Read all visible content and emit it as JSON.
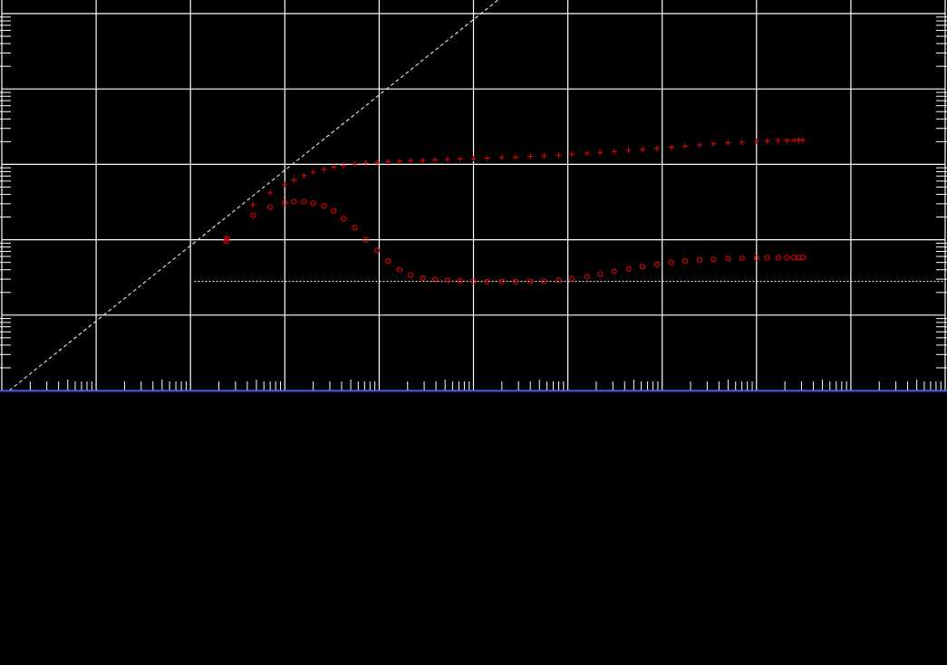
{
  "chart_data": {
    "type": "scatter",
    "title": "",
    "xlabel": "",
    "ylabel": "",
    "x_scale": "log",
    "y_scale": "log",
    "xlim": [
      0.01,
      100000000
    ],
    "ylim": [
      0.01,
      1000
    ],
    "grid": true,
    "legend": "none",
    "series": [
      {
        "marker": "plus",
        "color": "#ff0000",
        "x": [
          2.4,
          4.6,
          7.0,
          10.0,
          12.5,
          16,
          20,
          26,
          33,
          42,
          55,
          72,
          95,
          125,
          165,
          215,
          290,
          390,
          530,
          720,
          1000,
          1400,
          2000,
          2800,
          4000,
          5600,
          8000,
          11000,
          16000,
          22000,
          31000,
          44000,
          62000,
          88000,
          125000,
          175000,
          250000,
          350000,
          500000,
          700000,
          1000000,
          1300000,
          1700000,
          2100000,
          2500000,
          2800000,
          3100000
        ],
        "y": [
          1.0,
          2.9,
          4.2,
          5.4,
          6.2,
          7.1,
          7.9,
          8.6,
          9.2,
          9.7,
          10.1,
          10.4,
          10.6,
          10.8,
          11.0,
          11.2,
          11.3,
          11.5,
          11.6,
          11.8,
          11.9,
          12.1,
          12.3,
          12.5,
          12.8,
          13.0,
          13.3,
          13.6,
          14.0,
          14.4,
          14.8,
          15.3,
          15.8,
          16.3,
          16.9,
          17.5,
          18.1,
          18.7,
          19.3,
          19.8,
          20.2,
          20.5,
          20.7,
          20.8,
          20.9,
          21.0,
          21.0
        ]
      },
      {
        "marker": "circle",
        "color": "#ff0000",
        "x": [
          2.4,
          2.45,
          4.6,
          7.0,
          10.0,
          12.5,
          16,
          20,
          26,
          33,
          42,
          55,
          72,
          95,
          125,
          165,
          215,
          290,
          390,
          530,
          720,
          1000,
          1400,
          2000,
          2800,
          4000,
          5600,
          8000,
          11000,
          16000,
          22000,
          31000,
          44000,
          62000,
          88000,
          125000,
          175000,
          250000,
          350000,
          500000,
          700000,
          1000000,
          1300000,
          1700000,
          2100000,
          2500000,
          2800000,
          3100000
        ],
        "y": [
          0.95,
          1.05,
          2.1,
          2.7,
          3.1,
          3.2,
          3.2,
          3.05,
          2.8,
          2.4,
          1.9,
          1.45,
          1.0,
          0.72,
          0.52,
          0.4,
          0.34,
          0.31,
          0.295,
          0.29,
          0.285,
          0.28,
          0.278,
          0.277,
          0.277,
          0.279,
          0.282,
          0.29,
          0.305,
          0.325,
          0.35,
          0.38,
          0.41,
          0.44,
          0.47,
          0.5,
          0.52,
          0.54,
          0.55,
          0.56,
          0.565,
          0.57,
          0.575,
          0.577,
          0.578,
          0.579,
          0.58,
          0.58
        ]
      }
    ],
    "reference_lines": [
      {
        "kind": "unit-slope",
        "style": "dashed",
        "color": "#ffffff",
        "x": [
          0.012,
          12000
        ],
        "y": [
          0.01,
          10000
        ]
      },
      {
        "kind": "horizontal",
        "style": "dotted",
        "color": "#ffffff",
        "y": 0.28,
        "x_from": 1.1
      }
    ]
  },
  "colors": {
    "background": "#000000",
    "grid": "#ffffff",
    "axis": "#4a4aff",
    "data": "#ff0000",
    "ticks": "#ffffff"
  }
}
